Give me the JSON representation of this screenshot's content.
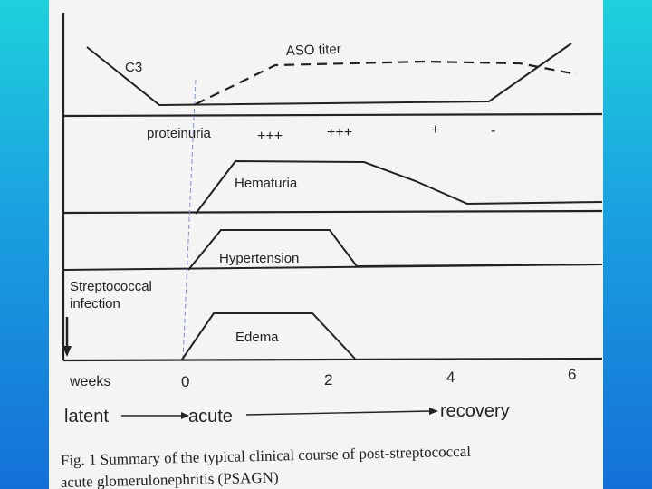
{
  "labels": {
    "c3": "C3",
    "aso_titer": "ASO titer",
    "proteinuria": "proteinuria",
    "proteinuria_levels": [
      "+++",
      "+++",
      "+",
      "-"
    ],
    "hematuria": "Hematuria",
    "hypertension": "Hypertension",
    "strep_line1": "Streptococcal",
    "strep_line2": "infection",
    "edema": "Edema",
    "weeks": "weeks",
    "ticks": [
      "0",
      "2",
      "4",
      "6"
    ],
    "latent": "latent",
    "acute": "acute",
    "recovery": "recovery"
  },
  "caption": {
    "line1": "Fig. 1  Summary of the typical clinical course of post-streptococcal",
    "line2": "acute glomerulonephritis (PSAGN)"
  },
  "colors": {
    "ink": "#222222",
    "marker": "#7a8fd0"
  }
}
